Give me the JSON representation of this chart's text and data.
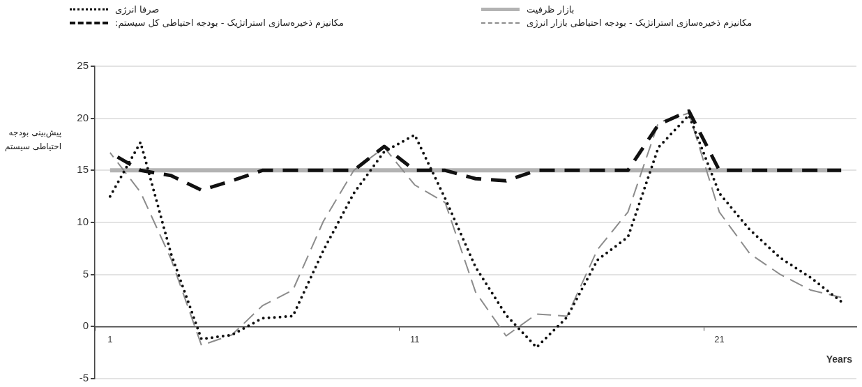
{
  "chart_data": {
    "type": "line",
    "xlabel": "Years",
    "ylabel": "پیش‌بینی بودجه احتیاطی سیستم",
    "categories": [
      "1",
      null,
      null,
      null,
      null,
      null,
      null,
      null,
      null,
      null,
      "11",
      null,
      null,
      null,
      null,
      null,
      null,
      null,
      null,
      null,
      "21",
      null,
      null,
      null,
      null
    ],
    "ylim": [
      -5,
      25
    ],
    "yticks": [
      -5,
      0,
      5,
      10,
      15,
      20,
      25
    ],
    "grid": "y",
    "legend": "top",
    "series": [
      {
        "name": "صرفا انرژی",
        "color": "#111111",
        "line_style": "dotted",
        "values": [
          12.5,
          17.7,
          7.0,
          -1.2,
          -0.8,
          0.8,
          1.0,
          7.3,
          12.8,
          16.8,
          18.4,
          12.3,
          5.7,
          1.1,
          -2.0,
          0.9,
          6.4,
          8.6,
          17.2,
          20.3,
          12.8,
          9.3,
          6.6,
          4.7,
          2.4
        ]
      },
      {
        "name": "بازار ظرفیت",
        "color": "#b3b3b3",
        "line_style": "solid",
        "values": [
          15,
          15,
          15,
          15,
          15,
          15,
          15,
          15,
          15,
          15,
          15,
          15,
          15,
          15,
          15,
          15,
          15,
          15,
          15,
          15,
          15,
          15,
          15,
          15,
          15
        ]
      },
      {
        "name": "مکانیزم ذخیره‌سازی استراتژیک - بودجه احتیاطی کل سیستم:",
        "color": "#111111",
        "line_style": "dashed",
        "values": [
          16.7,
          15.0,
          14.5,
          13.1,
          14.0,
          15.0,
          15.0,
          15.0,
          15.0,
          17.3,
          15.0,
          15.0,
          14.2,
          14.0,
          15.0,
          15.0,
          15.0,
          15.0,
          19.4,
          20.7,
          15.0,
          15.0,
          15.0,
          15.0,
          15.0
        ]
      },
      {
        "name": "مکانیزم ذخیره‌سازی استراتژیک - بودجه احتیاطی بازار انرژی",
        "color": "#8c8c8c",
        "line_style": "dashed",
        "values": [
          16.7,
          12.9,
          6.5,
          -1.8,
          -0.8,
          2.0,
          3.5,
          10.1,
          15.0,
          17.2,
          13.6,
          11.9,
          3.3,
          -0.9,
          1.2,
          1.0,
          7.4,
          11.0,
          19.6,
          20.5,
          11.0,
          7.0,
          5.0,
          3.5,
          2.8
        ]
      }
    ]
  }
}
